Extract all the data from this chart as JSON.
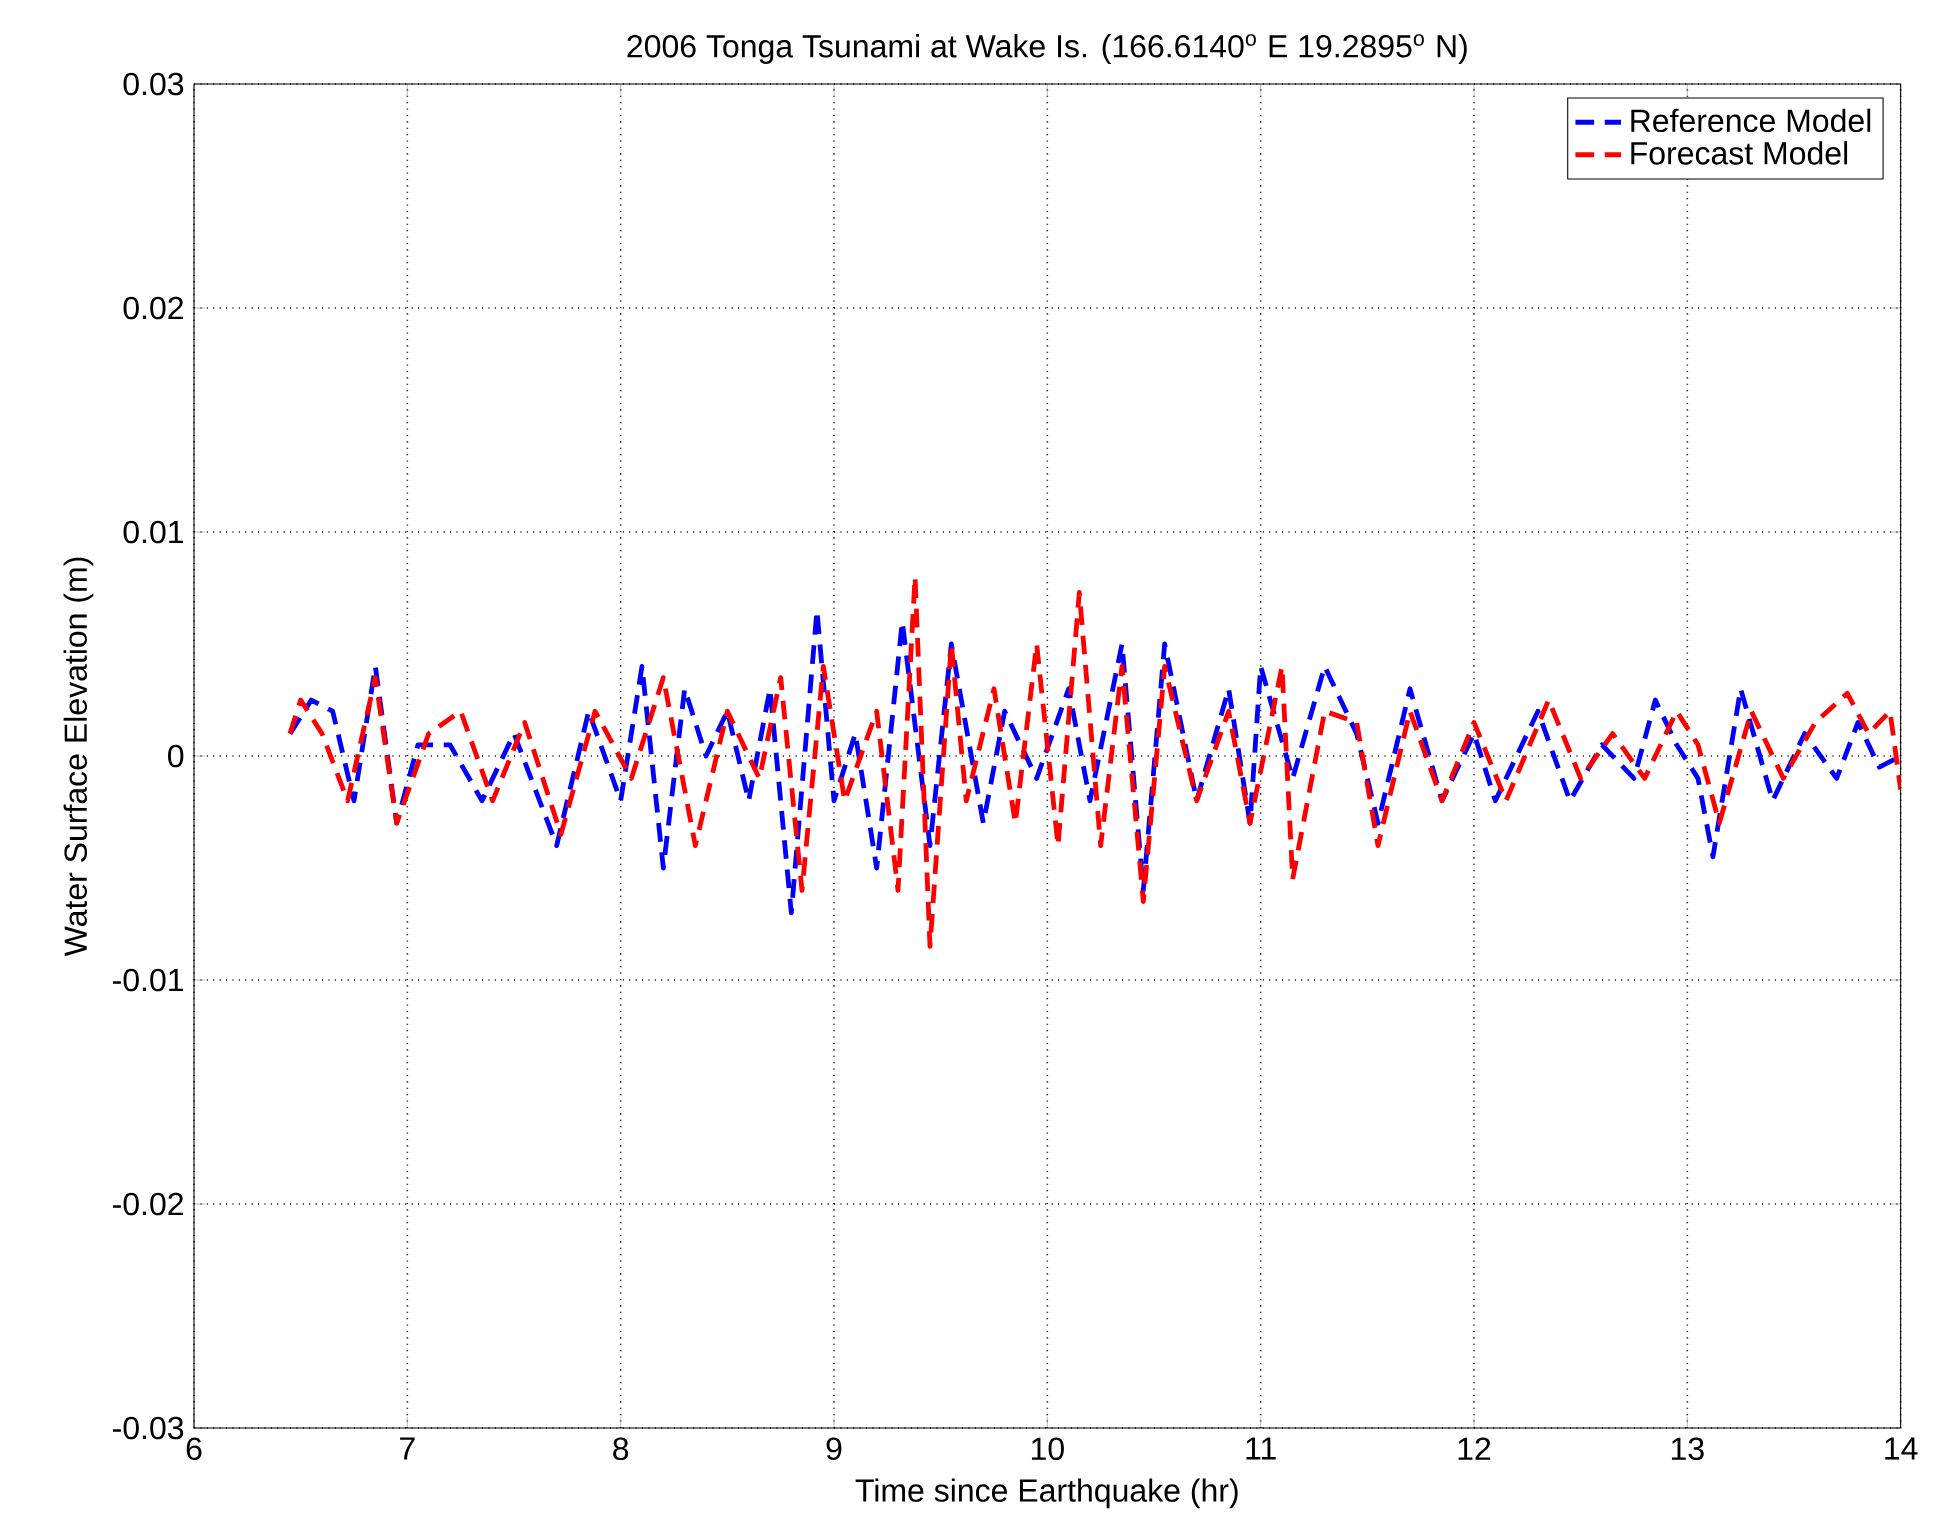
{
  "chart_data": {
    "type": "line",
    "title": "2006 Tonga Tsunami at Wake Is. (166.6140$^{o}$ E 19.2895$^{o}$ N)",
    "xlabel": "Time since Earthquake (hr)",
    "ylabel": "Water Surface Elevation (m)",
    "xlim": [
      6,
      14
    ],
    "ylim": [
      -0.03,
      0.03
    ],
    "xticks": [
      6,
      7,
      8,
      9,
      10,
      11,
      12,
      13,
      14
    ],
    "yticks": [
      -0.03,
      -0.02,
      -0.01,
      0,
      0.01,
      0.02,
      0.03
    ],
    "grid": true,
    "legend": "top right",
    "line_style": "dashed",
    "marker": "none",
    "series": [
      {
        "name": "Reference Model",
        "color": "#0000ff",
        "x": [
          6.45,
          6.55,
          6.65,
          6.75,
          6.85,
          6.95,
          7.05,
          7.2,
          7.35,
          7.5,
          7.7,
          7.85,
          8.0,
          8.1,
          8.2,
          8.3,
          8.4,
          8.5,
          8.6,
          8.7,
          8.8,
          8.92,
          9.0,
          9.1,
          9.2,
          9.32,
          9.45,
          9.55,
          9.7,
          9.8,
          9.95,
          10.1,
          10.2,
          10.35,
          10.45,
          10.55,
          10.7,
          10.85,
          10.95,
          11.0,
          11.15,
          11.3,
          11.45,
          11.55,
          11.7,
          11.85,
          12.0,
          12.1,
          12.3,
          12.45,
          12.6,
          12.75,
          12.85,
          12.95,
          13.05,
          13.12,
          13.25,
          13.4,
          13.55,
          13.7,
          13.8,
          13.9,
          14.0
        ],
        "values": [
          0.001,
          0.0025,
          0.002,
          -0.002,
          0.004,
          -0.003,
          0.0005,
          0.0005,
          -0.002,
          0.001,
          -0.004,
          0.002,
          -0.002,
          0.004,
          -0.005,
          0.003,
          0,
          0.002,
          -0.002,
          0.003,
          -0.007,
          0.0065,
          -0.002,
          0.001,
          -0.005,
          0.006,
          -0.004,
          0.005,
          -0.003,
          0.002,
          -0.001,
          0.003,
          -0.002,
          0.005,
          -0.006,
          0.005,
          -0.002,
          0.003,
          -0.003,
          0.004,
          -0.001,
          0.004,
          0.001,
          -0.003,
          0.003,
          -0.002,
          0.001,
          -0.002,
          0.002,
          -0.002,
          0.0005,
          -0.001,
          0.0025,
          0.0005,
          -0.001,
          -0.0045,
          0.003,
          -0.002,
          0.001,
          -0.001,
          0.0015,
          -0.0005,
          0
        ]
      },
      {
        "name": "Forecast Model",
        "color": "#ff0000",
        "x": [
          6.45,
          6.5,
          6.6,
          6.72,
          6.85,
          6.95,
          7.1,
          7.25,
          7.4,
          7.55,
          7.72,
          7.88,
          8.05,
          8.2,
          8.35,
          8.5,
          8.65,
          8.75,
          8.85,
          8.95,
          9.05,
          9.2,
          9.3,
          9.38,
          9.45,
          9.55,
          9.62,
          9.75,
          9.85,
          9.95,
          10.05,
          10.15,
          10.25,
          10.35,
          10.45,
          10.55,
          10.7,
          10.85,
          10.95,
          11.1,
          11.15,
          11.3,
          11.45,
          11.55,
          11.7,
          11.85,
          12.0,
          12.15,
          12.35,
          12.5,
          12.65,
          12.8,
          12.95,
          13.05,
          13.15,
          13.3,
          13.45,
          13.6,
          13.75,
          13.85,
          13.95,
          14.0
        ],
        "values": [
          0.001,
          0.0025,
          0.001,
          -0.002,
          0.0035,
          -0.003,
          0.001,
          0.002,
          -0.002,
          0.0015,
          -0.0035,
          0.002,
          -0.001,
          0.0035,
          -0.004,
          0.002,
          -0.001,
          0.0035,
          -0.006,
          0.004,
          -0.002,
          0.002,
          -0.006,
          0.008,
          -0.0085,
          0.005,
          -0.002,
          0.003,
          -0.003,
          0.005,
          -0.004,
          0.0073,
          -0.004,
          0.004,
          -0.0065,
          0.004,
          -0.002,
          0.002,
          -0.003,
          0.004,
          -0.0055,
          0.002,
          0.0015,
          -0.004,
          0.002,
          -0.002,
          0.0015,
          -0.002,
          0.0025,
          -0.001,
          0.001,
          -0.001,
          0.002,
          0.0005,
          -0.003,
          0.002,
          -0.001,
          0.0015,
          0.0028,
          0.001,
          0.002,
          -0.0015
        ]
      }
    ]
  }
}
